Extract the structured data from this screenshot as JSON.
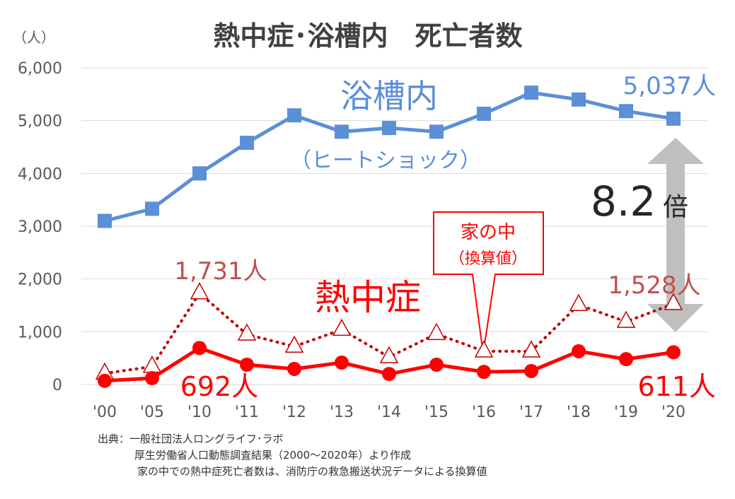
{
  "chart_data": {
    "type": "line",
    "title": "熱中症･浴槽内　死亡者数",
    "ylabel": "（人）",
    "ylim": [
      0,
      6000
    ],
    "yticks": [
      "0",
      "1,000",
      "2,000",
      "3,000",
      "4,000",
      "5,000",
      "6,000"
    ],
    "ytick_values": [
      0,
      1000,
      2000,
      3000,
      4000,
      5000,
      6000
    ],
    "categories": [
      "'00",
      "'05",
      "'10",
      "'11",
      "'12",
      "'13",
      "'14",
      "'15",
      "'16",
      "'17",
      "'18",
      "'19",
      "'20"
    ],
    "grid": true,
    "series": [
      {
        "name": "浴槽内",
        "sub": "（ヒートショック）",
        "color": "#5B8FD6",
        "marker": "square",
        "style": "solid",
        "values": [
          3100,
          3330,
          4000,
          4580,
          5100,
          4790,
          4860,
          4790,
          5130,
          5530,
          5400,
          5180,
          5037
        ]
      },
      {
        "name": "家の中（換算値）",
        "color": "#C00000",
        "marker": "triangle",
        "style": "dotted",
        "values": [
          210,
          340,
          1731,
          950,
          720,
          1040,
          520,
          960,
          630,
          630,
          1510,
          1190,
          1528
        ]
      },
      {
        "name": "熱中症",
        "color": "#FF0000",
        "marker": "circle",
        "style": "solid",
        "values": [
          70,
          120,
          692,
          375,
          295,
          415,
          200,
          375,
          240,
          255,
          630,
          480,
          611
        ]
      }
    ],
    "annotations": {
      "bath_last": "5,037人",
      "home_peak": "1,731人",
      "home_last": "1,528人",
      "heat_peak": "692人",
      "heat_last": "611人",
      "ratio": "8.2",
      "ratio_unit": "倍",
      "callout_line1": "家の中",
      "callout_line2": "（換算値）"
    }
  },
  "notes": [
    "出典：一般社団法人ロングライフ･ラボ",
    "厚生労働省人口動態調査結果（2000～2020年）より作成",
    "家の中での熱中症死亡者数は、消防庁の救急搬送状況データによる換算値"
  ]
}
